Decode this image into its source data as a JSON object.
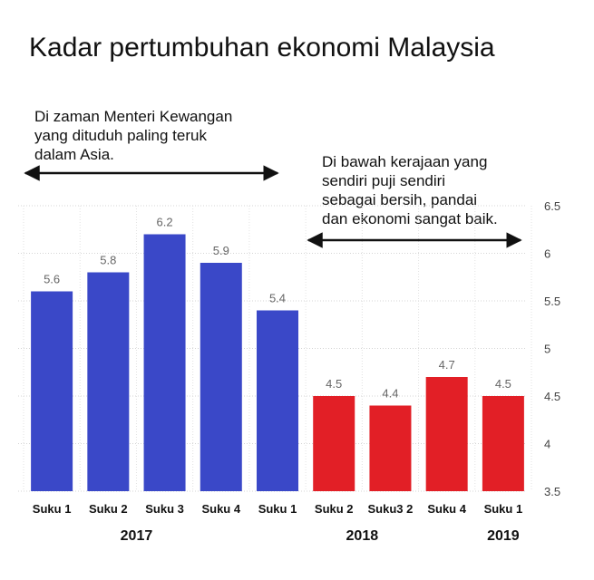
{
  "title": "Kadar pertumbuhan ekonomi Malaysia",
  "annotations": {
    "left": "Di zaman Menteri Kewangan\nyang dituduh paling teruk\ndalam Asia.",
    "right": "Di bawah kerajaan yang\nsendiri puji sendiri\nsebagai bersih, pandai\ndan ekonomi sangat baik."
  },
  "chart_data": {
    "type": "bar",
    "title": "Kadar pertumbuhan ekonomi Malaysia",
    "categories": [
      "Suku 1",
      "Suku 2",
      "Suku 3",
      "Suku 4",
      "Suku 1",
      "Suku 2",
      "Suku3 2",
      "Suku 4",
      "Suku 1"
    ],
    "values": [
      5.6,
      5.8,
      6.2,
      5.9,
      5.4,
      4.5,
      4.4,
      4.7,
      4.5
    ],
    "value_labels": [
      "5.6",
      "5.8",
      "6.2",
      "5.9",
      "5.4",
      "4.5",
      "4.4",
      "4.7",
      "4.5"
    ],
    "bar_colors": [
      "#3a48c8",
      "#3a48c8",
      "#3a48c8",
      "#3a48c8",
      "#3a48c8",
      "#e21f26",
      "#e21f26",
      "#e21f26",
      "#e21f26"
    ],
    "years": [
      {
        "label": "2017",
        "from": 0,
        "to": 3
      },
      {
        "label": "2018",
        "from": 4,
        "to": 7
      },
      {
        "label": "2019",
        "from": 8,
        "to": 8
      }
    ],
    "ylim": [
      3.5,
      6.5
    ],
    "yticks": [
      3.5,
      4,
      4.5,
      5,
      5.5,
      6,
      6.5
    ],
    "ytick_labels": [
      "3.5",
      "4",
      "4.5",
      "5",
      "5.5",
      "6",
      "6.5"
    ],
    "axis_side": "right",
    "grid": true,
    "xlabel": "",
    "ylabel": ""
  }
}
